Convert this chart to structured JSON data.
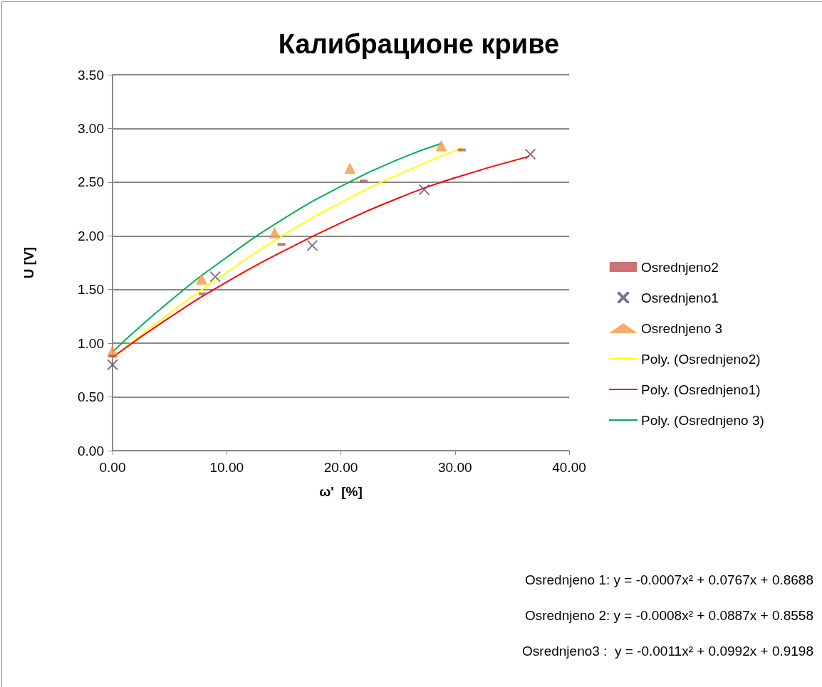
{
  "chart_data": {
    "type": "scatter",
    "title": "Калибрационе криве",
    "xlabel": "ω'  [%]",
    "ylabel": "U [V]",
    "xlim": [
      0,
      40
    ],
    "xticks": [
      {
        "value": 0,
        "label": "0.00"
      },
      {
        "value": 10,
        "label": "10.00"
      },
      {
        "value": 20,
        "label": "20.00"
      },
      {
        "value": 30,
        "label": "30.00"
      },
      {
        "value": 40,
        "label": "40.00"
      }
    ],
    "ylim": [
      0,
      3.5
    ],
    "yticks": [
      {
        "value": 0,
        "label": "0.00"
      },
      {
        "value": 0.5,
        "label": "0.50"
      },
      {
        "value": 1,
        "label": "1.00"
      },
      {
        "value": 1.5,
        "label": "1.50"
      },
      {
        "value": 2,
        "label": "2.00"
      },
      {
        "value": 2.5,
        "label": "2.50"
      },
      {
        "value": 3,
        "label": "3.00"
      },
      {
        "value": 3.5,
        "label": "3.50"
      }
    ],
    "grid": "y",
    "legend": "right",
    "series": [
      {
        "name": "Osrednjeno2",
        "marker": "square",
        "color": "#c0504d",
        "x": [
          0,
          7.9,
          14.8,
          22.0,
          30.6
        ],
        "values": [
          0.88,
          1.46,
          1.92,
          2.51,
          2.8
        ]
      },
      {
        "name": "Osrednjeno1",
        "marker": "cross",
        "color": "#604a7b",
        "x": [
          0,
          9.0,
          17.5,
          27.3,
          36.6
        ],
        "values": [
          0.8,
          1.62,
          1.91,
          2.43,
          2.76
        ]
      },
      {
        "name": "Osrednjeno 3",
        "marker": "triangle",
        "color": "#f79646",
        "x": [
          0,
          7.8,
          14.2,
          20.8,
          28.8
        ],
        "values": [
          0.93,
          1.6,
          2.03,
          2.63,
          2.84
        ]
      },
      {
        "name": "Poly. (Osrednjeno2)",
        "type": "line",
        "marker": "none",
        "color": "#ffff00",
        "x": [
          0,
          5,
          10,
          15,
          20,
          25,
          30.6
        ],
        "values": [
          0.86,
          1.28,
          1.66,
          2.01,
          2.31,
          2.57,
          2.82
        ]
      },
      {
        "name": "Poly. (Osrednjeno1)",
        "type": "line",
        "marker": "none",
        "color": "#ff0000",
        "x": [
          0,
          5,
          10,
          15,
          20,
          25,
          30,
          36.5
        ],
        "values": [
          0.87,
          1.24,
          1.57,
          1.86,
          2.12,
          2.35,
          2.54,
          2.74
        ]
      },
      {
        "name": "Poly. (Osrednjeno 3)",
        "type": "line",
        "marker": "none",
        "color": "#00b050",
        "x": [
          0,
          5,
          10,
          15,
          20,
          25,
          28.8
        ],
        "values": [
          0.92,
          1.39,
          1.8,
          2.16,
          2.46,
          2.71,
          2.86
        ]
      }
    ],
    "annotations": [
      "Osrednjeno 1: y = -0.0007x² + 0.0767x + 0.8688",
      "Osrednjeno 2: y = -0.0008x² + 0.0887x + 0.8558",
      "Osrednjeno3 :  y = -0.0011x² + 0.0992x + 0.9198"
    ]
  }
}
